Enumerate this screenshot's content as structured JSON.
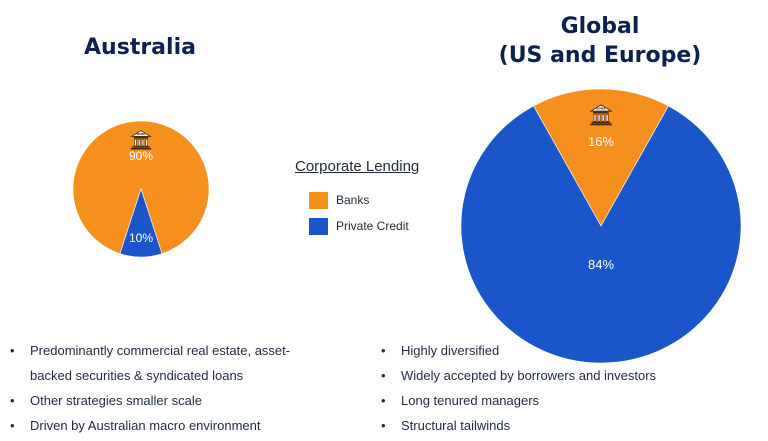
{
  "colors": {
    "banks": "#f5901e",
    "private_credit": "#1a56c9",
    "title": "#0b2250"
  },
  "legend": {
    "title": "Corporate Lending",
    "items": [
      {
        "label": "Banks",
        "color": "#f5901e"
      },
      {
        "label": "Private Credit",
        "color": "#1a56c9"
      }
    ]
  },
  "icons": {
    "bank": "bank-building-icon",
    "bank_sign": "BANK"
  },
  "chart_data": [
    {
      "type": "pie",
      "title": "Australia",
      "slices": [
        {
          "name": "Banks",
          "value": 90,
          "label": "90%",
          "color": "#f5901e"
        },
        {
          "name": "Private Credit",
          "value": 10,
          "label": "10%",
          "color": "#1a56c9"
        }
      ]
    },
    {
      "type": "pie",
      "title_lines": [
        "Global",
        "(US and Europe)"
      ],
      "slices": [
        {
          "name": "Banks",
          "value": 16,
          "label": "16%",
          "color": "#f5901e"
        },
        {
          "name": "Private Credit",
          "value": 84,
          "label": "84%",
          "color": "#1a56c9"
        }
      ]
    }
  ],
  "bullets": {
    "australia": [
      "Predominantly commercial real estate, asset-backed securities & syndicated loans",
      "Other strategies smaller scale",
      "Driven by Australian macro environment"
    ],
    "global": [
      "Highly diversified",
      "Widely accepted by borrowers and investors",
      "Long tenured managers",
      "Structural tailwinds"
    ]
  }
}
